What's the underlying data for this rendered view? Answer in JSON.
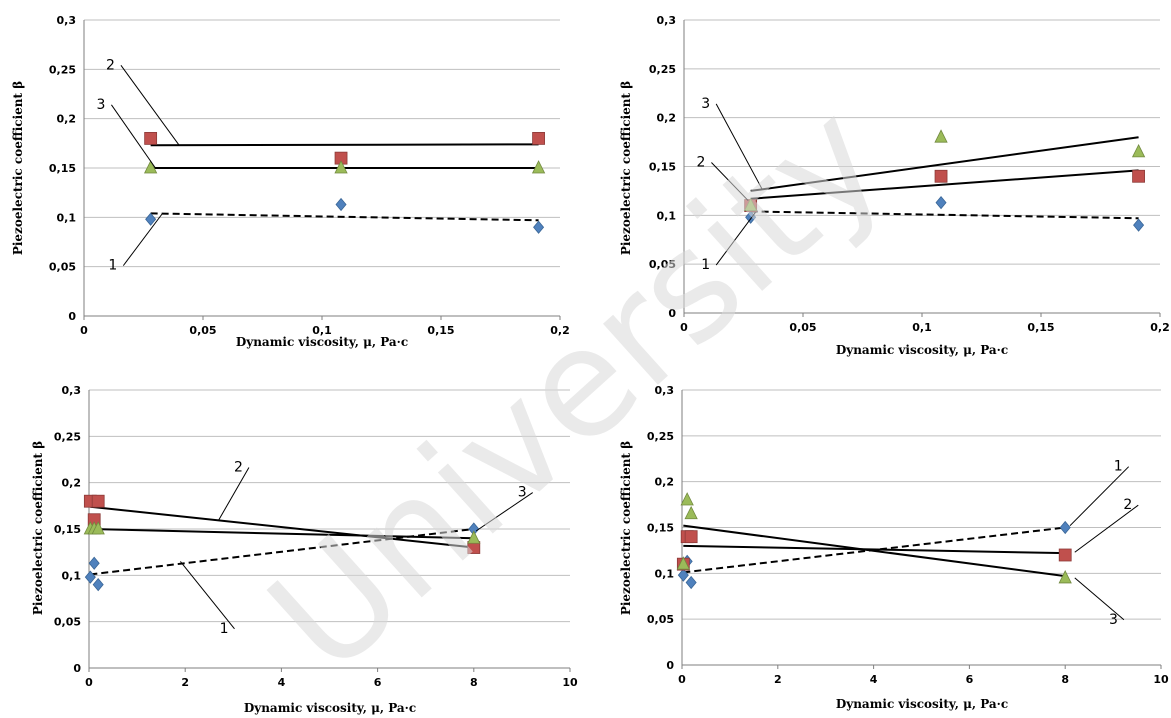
{
  "watermark": "University",
  "chart_data": [
    {
      "type": "scatter",
      "xlabel": "Dynamic viscosity, μ, Pa·c",
      "ylabel": "Piezoelectric coefficient β",
      "xlim": [
        0,
        0.2
      ],
      "ylim": [
        0,
        0.3
      ],
      "xticks": [
        {
          "v": 0,
          "t": "0"
        },
        {
          "v": 0.05,
          "t": "0,05"
        },
        {
          "v": 0.1,
          "t": "0,1"
        },
        {
          "v": 0.15,
          "t": "0,15"
        },
        {
          "v": 0.2,
          "t": "0,2"
        }
      ],
      "yticks": [
        {
          "v": 0,
          "t": "0"
        },
        {
          "v": 0.05,
          "t": "0,05"
        },
        {
          "v": 0.1,
          "t": "0,1"
        },
        {
          "v": 0.15,
          "t": "0,15"
        },
        {
          "v": 0.2,
          "t": "0,2"
        },
        {
          "v": 0.25,
          "t": "0,25"
        },
        {
          "v": 0.3,
          "t": "0,3"
        }
      ],
      "grid": true,
      "series": [
        {
          "marker": "diamond",
          "color": "#4f81bd",
          "x": [
            0.028,
            0.108,
            0.191
          ],
          "y": [
            0.098,
            0.113,
            0.09
          ],
          "trend": [
            [
              0.028,
              0.104
            ],
            [
              0.191,
              0.097
            ]
          ],
          "dashed": true
        },
        {
          "marker": "square",
          "color": "#c0504d",
          "x": [
            0.028,
            0.108,
            0.191
          ],
          "y": [
            0.18,
            0.16,
            0.18
          ],
          "trend": [
            [
              0.028,
              0.173
            ],
            [
              0.191,
              0.174
            ]
          ],
          "dashed": false
        },
        {
          "marker": "triangle",
          "color": "#9bbb59",
          "x": [
            0.028,
            0.108,
            0.191
          ],
          "y": [
            0.15,
            0.15,
            0.15
          ],
          "trend": [
            [
              0.028,
              0.15
            ],
            [
              0.191,
              0.15
            ]
          ],
          "dashed": false
        }
      ],
      "callouts": [
        {
          "label": "1",
          "tx": 0.014,
          "ty": 0.047,
          "px": 0.033,
          "py": 0.104
        },
        {
          "label": "2",
          "tx": 0.013,
          "ty": 0.25,
          "px": 0.04,
          "py": 0.173
        },
        {
          "label": "3",
          "tx": 0.009,
          "ty": 0.21,
          "px": 0.03,
          "py": 0.15
        }
      ]
    },
    {
      "type": "scatter",
      "xlabel": "Dynamic viscosity, μ, Pa·c",
      "ylabel": "Piezoelectric coefficient β",
      "xlim": [
        0,
        0.2
      ],
      "ylim": [
        0,
        0.3
      ],
      "xticks": [
        {
          "v": 0,
          "t": "0"
        },
        {
          "v": 0.05,
          "t": "0,05"
        },
        {
          "v": 0.1,
          "t": "0,1"
        },
        {
          "v": 0.15,
          "t": "0,15"
        },
        {
          "v": 0.2,
          "t": "0,2"
        }
      ],
      "yticks": [
        {
          "v": 0,
          "t": "0"
        },
        {
          "v": 0.05,
          "t": "0,05"
        },
        {
          "v": 0.1,
          "t": "0,1"
        },
        {
          "v": 0.15,
          "t": "0,15"
        },
        {
          "v": 0.2,
          "t": "0,2"
        },
        {
          "v": 0.25,
          "t": "0,25"
        },
        {
          "v": 0.3,
          "t": "0,3"
        }
      ],
      "grid": true,
      "series": [
        {
          "marker": "diamond",
          "color": "#4f81bd",
          "x": [
            0.028,
            0.108,
            0.191
          ],
          "y": [
            0.098,
            0.113,
            0.09
          ],
          "trend": [
            [
              0.028,
              0.104
            ],
            [
              0.191,
              0.097
            ]
          ],
          "dashed": true
        },
        {
          "marker": "square",
          "color": "#c0504d",
          "x": [
            0.028,
            0.108,
            0.191
          ],
          "y": [
            0.11,
            0.14,
            0.14
          ],
          "trend": [
            [
              0.028,
              0.117
            ],
            [
              0.191,
              0.146
            ]
          ],
          "dashed": false
        },
        {
          "marker": "triangle",
          "color": "#9bbb59",
          "x": [
            0.028,
            0.108,
            0.191
          ],
          "y": [
            0.11,
            0.18,
            0.165
          ],
          "trend": [
            [
              0.028,
              0.125
            ],
            [
              0.191,
              0.18
            ]
          ],
          "dashed": false
        }
      ],
      "callouts": [
        {
          "label": "1",
          "tx": 0.011,
          "ty": 0.045,
          "px": 0.03,
          "py": 0.103
        },
        {
          "label": "2",
          "tx": 0.009,
          "ty": 0.15,
          "px": 0.027,
          "py": 0.115
        },
        {
          "label": "3",
          "tx": 0.011,
          "ty": 0.21,
          "px": 0.033,
          "py": 0.126
        }
      ]
    },
    {
      "type": "scatter",
      "xlabel": "Dynamic viscosity, μ, Pa·c",
      "ylabel": "Piezoelectric coefficient β",
      "xlim": [
        0,
        10
      ],
      "ylim": [
        0,
        0.3
      ],
      "xticks": [
        {
          "v": 0,
          "t": "0"
        },
        {
          "v": 2,
          "t": "2"
        },
        {
          "v": 4,
          "t": "4"
        },
        {
          "v": 6,
          "t": "6"
        },
        {
          "v": 8,
          "t": "8"
        },
        {
          "v": 10,
          "t": "10"
        }
      ],
      "yticks": [
        {
          "v": 0,
          "t": "0"
        },
        {
          "v": 0.05,
          "t": "0,05"
        },
        {
          "v": 0.1,
          "t": "0,1"
        },
        {
          "v": 0.15,
          "t": "0,15"
        },
        {
          "v": 0.2,
          "t": "0,2"
        },
        {
          "v": 0.25,
          "t": "0,25"
        },
        {
          "v": 0.3,
          "t": "0,3"
        }
      ],
      "grid": true,
      "series": [
        {
          "marker": "diamond",
          "color": "#4f81bd",
          "x": [
            0.028,
            0.108,
            0.191,
            8
          ],
          "y": [
            0.098,
            0.113,
            0.09,
            0.15
          ],
          "trend": [
            [
              0.028,
              0.101
            ],
            [
              8,
              0.15
            ]
          ],
          "dashed": true
        },
        {
          "marker": "square",
          "color": "#c0504d",
          "x": [
            0.028,
            0.108,
            0.191,
            8
          ],
          "y": [
            0.18,
            0.16,
            0.18,
            0.13
          ],
          "trend": [
            [
              0.028,
              0.174
            ],
            [
              8,
              0.13
            ]
          ],
          "dashed": false
        },
        {
          "marker": "triangle",
          "color": "#9bbb59",
          "x": [
            0.028,
            0.108,
            0.191,
            8
          ],
          "y": [
            0.15,
            0.15,
            0.15,
            0.14
          ],
          "trend": [
            [
              0.028,
              0.15
            ],
            [
              8,
              0.14
            ]
          ],
          "dashed": false
        }
      ],
      "callouts": [
        {
          "label": "1",
          "tx": 2.9,
          "ty": 0.038,
          "px": 1.9,
          "py": 0.115
        },
        {
          "label": "2",
          "tx": 3.2,
          "ty": 0.212,
          "px": 2.7,
          "py": 0.16
        },
        {
          "label": "3",
          "tx": 9.1,
          "ty": 0.185,
          "px": 8.05,
          "py": 0.148
        }
      ]
    },
    {
      "type": "scatter",
      "xlabel": "Dynamic viscosity, μ, Pa·c",
      "ylabel": "Piezoelectric coefficient β",
      "xlim": [
        0,
        10
      ],
      "ylim": [
        0,
        0.3
      ],
      "xticks": [
        {
          "v": 0,
          "t": "0"
        },
        {
          "v": 2,
          "t": "2"
        },
        {
          "v": 4,
          "t": "4"
        },
        {
          "v": 6,
          "t": "6"
        },
        {
          "v": 8,
          "t": "8"
        },
        {
          "v": 10,
          "t": "10"
        }
      ],
      "yticks": [
        {
          "v": 0,
          "t": "0"
        },
        {
          "v": 0.05,
          "t": "0,05"
        },
        {
          "v": 0.1,
          "t": "0,1"
        },
        {
          "v": 0.15,
          "t": "0,15"
        },
        {
          "v": 0.2,
          "t": "0,2"
        },
        {
          "v": 0.25,
          "t": "0,25"
        },
        {
          "v": 0.3,
          "t": "0,3"
        }
      ],
      "grid": true,
      "series": [
        {
          "marker": "diamond",
          "color": "#4f81bd",
          "x": [
            0.028,
            0.108,
            0.191,
            8
          ],
          "y": [
            0.098,
            0.113,
            0.09,
            0.15
          ],
          "trend": [
            [
              0.028,
              0.101
            ],
            [
              8,
              0.15
            ]
          ],
          "dashed": true
        },
        {
          "marker": "square",
          "color": "#c0504d",
          "x": [
            0.028,
            0.108,
            0.191,
            8
          ],
          "y": [
            0.11,
            0.14,
            0.14,
            0.12
          ],
          "trend": [
            [
              0.028,
              0.13
            ],
            [
              8,
              0.122
            ]
          ],
          "dashed": false
        },
        {
          "marker": "triangle",
          "color": "#9bbb59",
          "x": [
            0.028,
            0.108,
            0.191,
            8
          ],
          "y": [
            0.11,
            0.18,
            0.165,
            0.095
          ],
          "trend": [
            [
              0.028,
              0.152
            ],
            [
              8,
              0.097
            ]
          ],
          "dashed": false
        }
      ],
      "callouts": [
        {
          "label": "1",
          "tx": 9.2,
          "ty": 0.212,
          "px": 8.1,
          "py": 0.152
        },
        {
          "label": "2",
          "tx": 9.4,
          "ty": 0.17,
          "px": 8.2,
          "py": 0.123
        },
        {
          "label": "3",
          "tx": 9.1,
          "ty": 0.045,
          "px": 8.2,
          "py": 0.095
        }
      ]
    }
  ]
}
